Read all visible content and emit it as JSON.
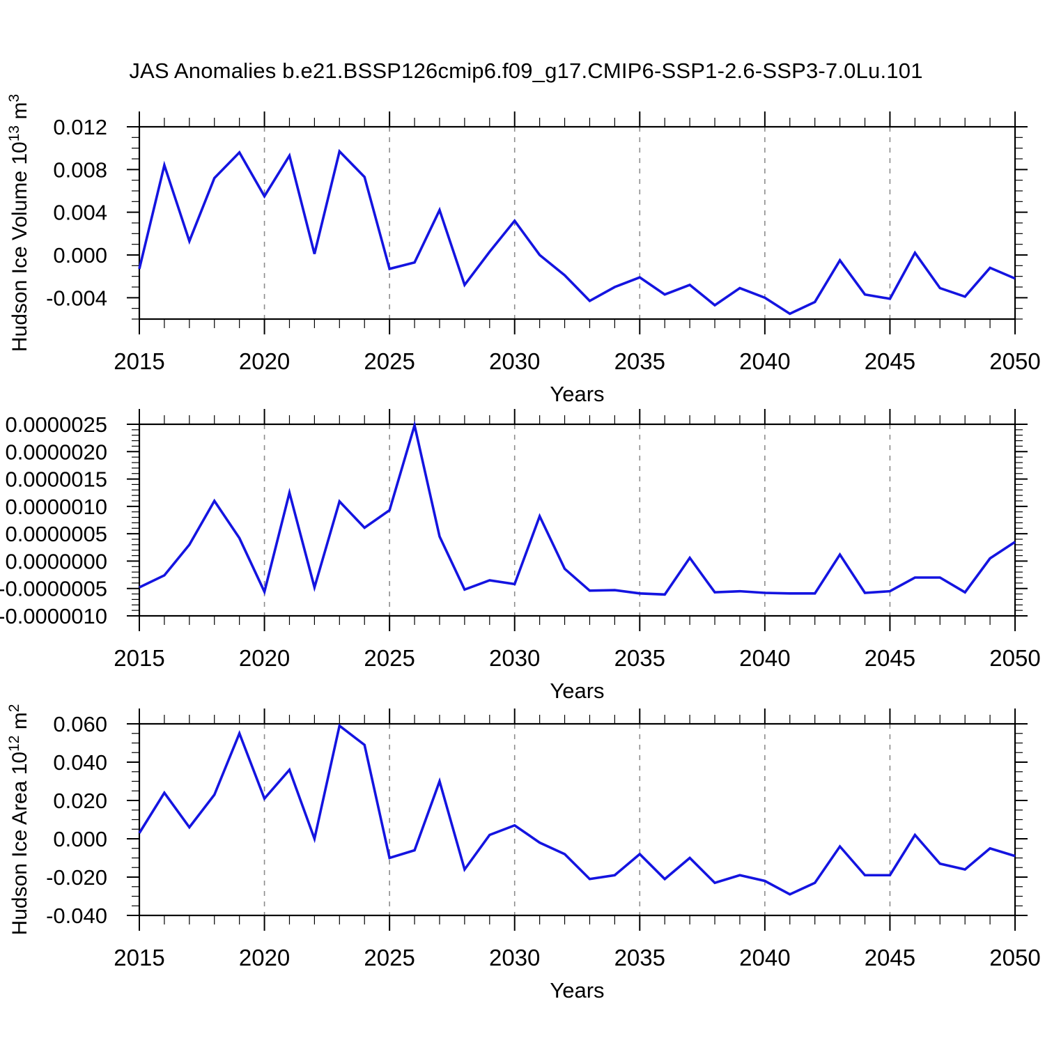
{
  "title": "JAS Anomalies b.e21.BSSP126cmip6.f09_g17.CMIP6-SSP1-2.6-SSP3-7.0Lu.101",
  "colors": {
    "line": "#1414E0",
    "grid": "#8C8C8C",
    "axis": "#000000",
    "text": "#000000",
    "background": "#FFFFFF"
  },
  "chart_data": [
    {
      "type": "line",
      "panel": "hudson-ice-volume",
      "ylabel": "Hudson Ice Volume 10^13 m^3",
      "xlabel": "Years",
      "xlim": [
        2015,
        2050
      ],
      "ylim": [
        -0.006,
        0.012
      ],
      "xticks": {
        "values": [
          2015,
          2020,
          2025,
          2030,
          2035,
          2040,
          2045,
          2050
        ],
        "labels": [
          "2015",
          "2020",
          "2025",
          "2030",
          "2035",
          "2040",
          "2045",
          "2050"
        ]
      },
      "yticks": {
        "values": [
          0.012,
          0.008,
          0.004,
          0.0,
          -0.004
        ],
        "labels": [
          "0.012",
          "0.008",
          "0.004",
          "0.000",
          "-0.004"
        ]
      },
      "xminor": 1,
      "yminor": 0.001,
      "grid_x": [
        2020,
        2025,
        2030,
        2035,
        2040,
        2045
      ],
      "grid_on": true,
      "legend": null,
      "x": [
        2015,
        2016,
        2017,
        2018,
        2019,
        2020,
        2021,
        2022,
        2023,
        2024,
        2025,
        2026,
        2027,
        2028,
        2029,
        2030,
        2031,
        2032,
        2033,
        2034,
        2035,
        2036,
        2037,
        2038,
        2039,
        2040,
        2041,
        2042,
        2043,
        2044,
        2045,
        2046,
        2047,
        2048,
        2049,
        2050
      ],
      "values": [
        -0.0013,
        0.0084,
        0.0013,
        0.0072,
        0.0096,
        0.0055,
        0.0093,
        0.0001,
        0.0097,
        0.0073,
        -0.0013,
        -0.0007,
        0.0042,
        -0.0028,
        0.0003,
        0.0032,
        0.0,
        -0.0019,
        -0.0043,
        -0.003,
        -0.0021,
        -0.0037,
        -0.0028,
        -0.0047,
        -0.0031,
        -0.004,
        -0.0055,
        -0.0044,
        -0.0005,
        -0.0037,
        -0.0041,
        0.0002,
        -0.0031,
        -0.0039,
        -0.0012,
        -0.0022
      ]
    },
    {
      "type": "line",
      "panel": "middle-unlabeled",
      "ylabel": null,
      "xlabel": "Years",
      "xlim": [
        2015,
        2050
      ],
      "ylim": [
        -1e-06,
        2.5e-06
      ],
      "xticks": {
        "values": [
          2015,
          2020,
          2025,
          2030,
          2035,
          2040,
          2045,
          2050
        ],
        "labels": [
          "2015",
          "2020",
          "2025",
          "2030",
          "2035",
          "2040",
          "2045",
          "2050"
        ]
      },
      "yticks": {
        "values": [
          2.5e-06,
          2e-06,
          1.5e-06,
          1e-06,
          5e-07,
          0.0,
          -5e-07,
          -1e-06
        ],
        "labels": [
          "0.0000025",
          "0.0000020",
          "0.0000015",
          "0.0000010",
          "0.0000005",
          "0.0000000",
          "-0.0000005",
          "-0.0000010"
        ]
      },
      "xminor": 1,
      "yminor": 1e-07,
      "grid_x": [
        2020,
        2025,
        2030,
        2035,
        2040,
        2045
      ],
      "grid_on": true,
      "legend": null,
      "x": [
        2015,
        2016,
        2017,
        2018,
        2019,
        2020,
        2021,
        2022,
        2023,
        2024,
        2025,
        2026,
        2027,
        2028,
        2029,
        2030,
        2031,
        2032,
        2033,
        2034,
        2035,
        2036,
        2037,
        2038,
        2039,
        2040,
        2041,
        2042,
        2043,
        2044,
        2045,
        2046,
        2047,
        2048,
        2049,
        2050
      ],
      "values": [
        -4.8e-07,
        -2.6e-07,
        3e-07,
        1.1e-06,
        4.2e-07,
        -5.6e-07,
        1.25e-06,
        -4.8e-07,
        1.09e-06,
        6.1e-07,
        9.3e-07,
        2.48e-06,
        4.5e-07,
        -5.2e-07,
        -3.5e-07,
        -4.2e-07,
        8.2e-07,
        -1.4e-07,
        -5.4e-07,
        -5.3e-07,
        -5.9e-07,
        -6.1e-07,
        6e-08,
        -5.7e-07,
        -5.5e-07,
        -5.8e-07,
        -5.9e-07,
        -5.9e-07,
        1.2e-07,
        -5.8e-07,
        -5.5e-07,
        -3e-07,
        -3e-07,
        -5.7e-07,
        5e-08,
        3.5e-07
      ]
    },
    {
      "type": "line",
      "panel": "hudson-ice-area",
      "ylabel": "Hudson Ice Area 10^12 m^2",
      "xlabel": "Years",
      "xlim": [
        2015,
        2050
      ],
      "ylim": [
        -0.04,
        0.06
      ],
      "xticks": {
        "values": [
          2015,
          2020,
          2025,
          2030,
          2035,
          2040,
          2045,
          2050
        ],
        "labels": [
          "2015",
          "2020",
          "2025",
          "2030",
          "2035",
          "2040",
          "2045",
          "2050"
        ]
      },
      "yticks": {
        "values": [
          0.06,
          0.04,
          0.02,
          0.0,
          -0.02,
          -0.04
        ],
        "labels": [
          "0.060",
          "0.040",
          "0.020",
          "0.000",
          "-0.020",
          "-0.040"
        ]
      },
      "xminor": 1,
      "yminor": 0.005,
      "grid_x": [
        2020,
        2025,
        2030,
        2035,
        2040,
        2045
      ],
      "grid_on": true,
      "legend": null,
      "x": [
        2015,
        2016,
        2017,
        2018,
        2019,
        2020,
        2021,
        2022,
        2023,
        2024,
        2025,
        2026,
        2027,
        2028,
        2029,
        2030,
        2031,
        2032,
        2033,
        2034,
        2035,
        2036,
        2037,
        2038,
        2039,
        2040,
        2041,
        2042,
        2043,
        2044,
        2045,
        2046,
        2047,
        2048,
        2049,
        2050
      ],
      "values": [
        0.003,
        0.024,
        0.006,
        0.023,
        0.055,
        0.021,
        0.036,
        0.0,
        0.059,
        0.049,
        -0.01,
        -0.006,
        0.03,
        -0.016,
        0.002,
        0.007,
        -0.002,
        -0.008,
        -0.021,
        -0.019,
        -0.008,
        -0.021,
        -0.01,
        -0.023,
        -0.019,
        -0.022,
        -0.029,
        -0.023,
        -0.004,
        -0.019,
        -0.019,
        0.002,
        -0.013,
        -0.016,
        -0.005,
        -0.009
      ]
    }
  ]
}
